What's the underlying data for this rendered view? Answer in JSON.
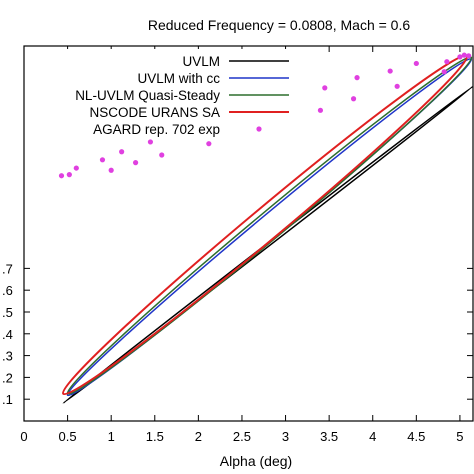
{
  "chart_data": {
    "type": "line",
    "title": "Reduced Frequency = 0.0808, Mach = 0.6",
    "xlabel": "Alpha (deg)",
    "ylabel": "",
    "xlim": [
      0,
      5.15
    ],
    "ylim": [
      0,
      1.72
    ],
    "x_ticks": [
      0,
      0.5,
      1,
      1.5,
      2,
      2.5,
      3,
      3.5,
      4,
      4.5,
      5
    ],
    "x_tick_labels": [
      "0",
      "0.5",
      "1",
      "1.5",
      "2",
      "2.5",
      "3",
      "3.5",
      "4",
      "4.5",
      "5"
    ],
    "y_ticks": [
      0.1,
      0.2,
      0.3,
      0.4,
      0.5,
      0.6,
      0.7
    ],
    "y_tick_labels": [
      ".1",
      ".2",
      ".3",
      ".4",
      ".5",
      ".6",
      ".7"
    ],
    "grid": false,
    "legend_position": "top-left",
    "series": [
      {
        "name": "UVLM",
        "color": "#000000",
        "style": "loop",
        "loop": {
          "lower": {
            "x": 0.45,
            "y": 0.082
          },
          "upper": {
            "x": 5.15,
            "y": 1.535
          },
          "half_width": 0.006
        }
      },
      {
        "name": "UVLM with cc",
        "color": "#1f35c9",
        "style": "loop",
        "loop": {
          "lower": {
            "x": 0.5,
            "y": 0.118
          },
          "upper": {
            "x": 5.13,
            "y": 1.66
          },
          "half_width": 0.055
        }
      },
      {
        "name": "NL-UVLM Quasi-Steady",
        "color": "#2d6e2d",
        "style": "loop",
        "loop": {
          "lower": {
            "x": 0.5,
            "y": 0.125
          },
          "upper": {
            "x": 5.13,
            "y": 1.668
          },
          "half_width": 0.062
        }
      },
      {
        "name": "NSCODE URANS SA",
        "color": "#e02020",
        "style": "loop",
        "loop": {
          "lower": {
            "x": 0.45,
            "y": 0.125
          },
          "upper": {
            "x": 5.08,
            "y": 1.675
          },
          "half_width": 0.072
        }
      },
      {
        "name": "AGARD rep. 702 exp",
        "color": "#e040e0",
        "style": "points",
        "x": [
          0.43,
          0.52,
          0.6,
          0.9,
          1.0,
          1.12,
          1.28,
          1.45,
          1.58,
          1.85,
          2.12,
          2.2,
          2.55,
          2.62,
          2.95,
          3.0,
          3.4,
          3.45,
          3.78,
          3.82,
          4.2,
          4.28,
          4.5,
          4.82,
          4.85,
          5.0,
          5.05,
          5.1
        ],
        "y": [
          1.125,
          1.13,
          1.16,
          1.198,
          1.15,
          1.235,
          1.185,
          1.28,
          1.22,
          1.335,
          1.272,
          1.378,
          1.32,
          1.43,
          1.372,
          1.475,
          1.425,
          1.528,
          1.478,
          1.575,
          1.605,
          1.535,
          1.64,
          1.602,
          1.648,
          1.67,
          1.678,
          1.675
        ]
      }
    ]
  }
}
